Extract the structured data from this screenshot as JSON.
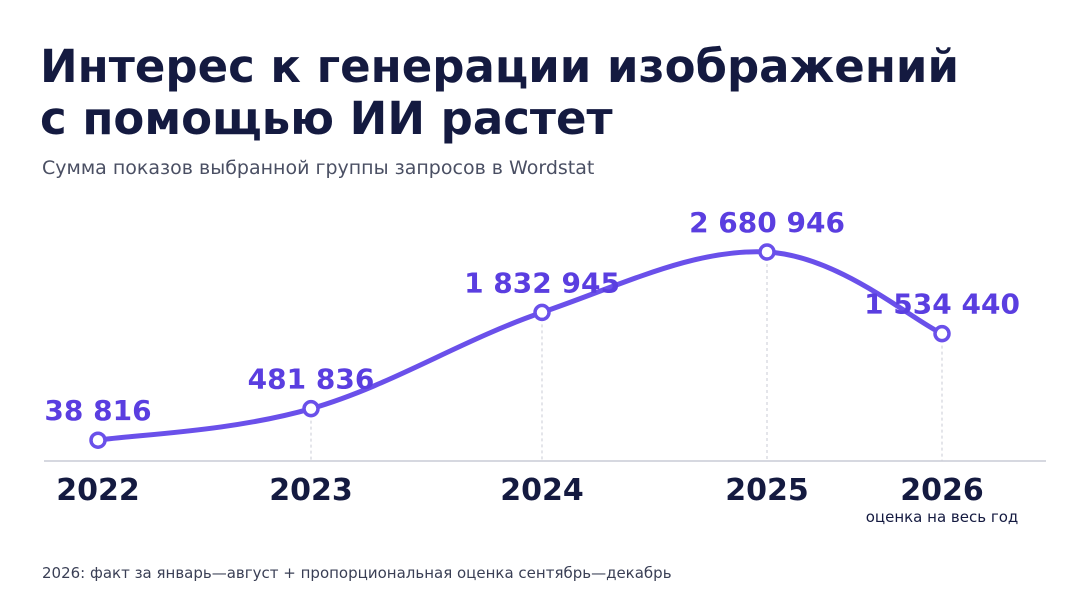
{
  "chart_data": {
    "type": "line",
    "title": [
      "Интерес к генерации изображений",
      "с помощью ИИ растет"
    ],
    "subtitle": "Сумма показов выбранной группы запросов в Wordstat",
    "categories": [
      "2022",
      "2023",
      "2024",
      "2025",
      "2026"
    ],
    "values": [
      38816,
      481836,
      1832945,
      2680946,
      1534440
    ],
    "value_labels": [
      "38 816",
      "481 836",
      "1 832 945",
      "2 680 946",
      "1 534 440"
    ],
    "color": "#6a50ea",
    "annotation": "оценка на весь год",
    "footnote": "2026: факт за январь—август + пропорциональная оценка сентябрь—декабрь"
  }
}
